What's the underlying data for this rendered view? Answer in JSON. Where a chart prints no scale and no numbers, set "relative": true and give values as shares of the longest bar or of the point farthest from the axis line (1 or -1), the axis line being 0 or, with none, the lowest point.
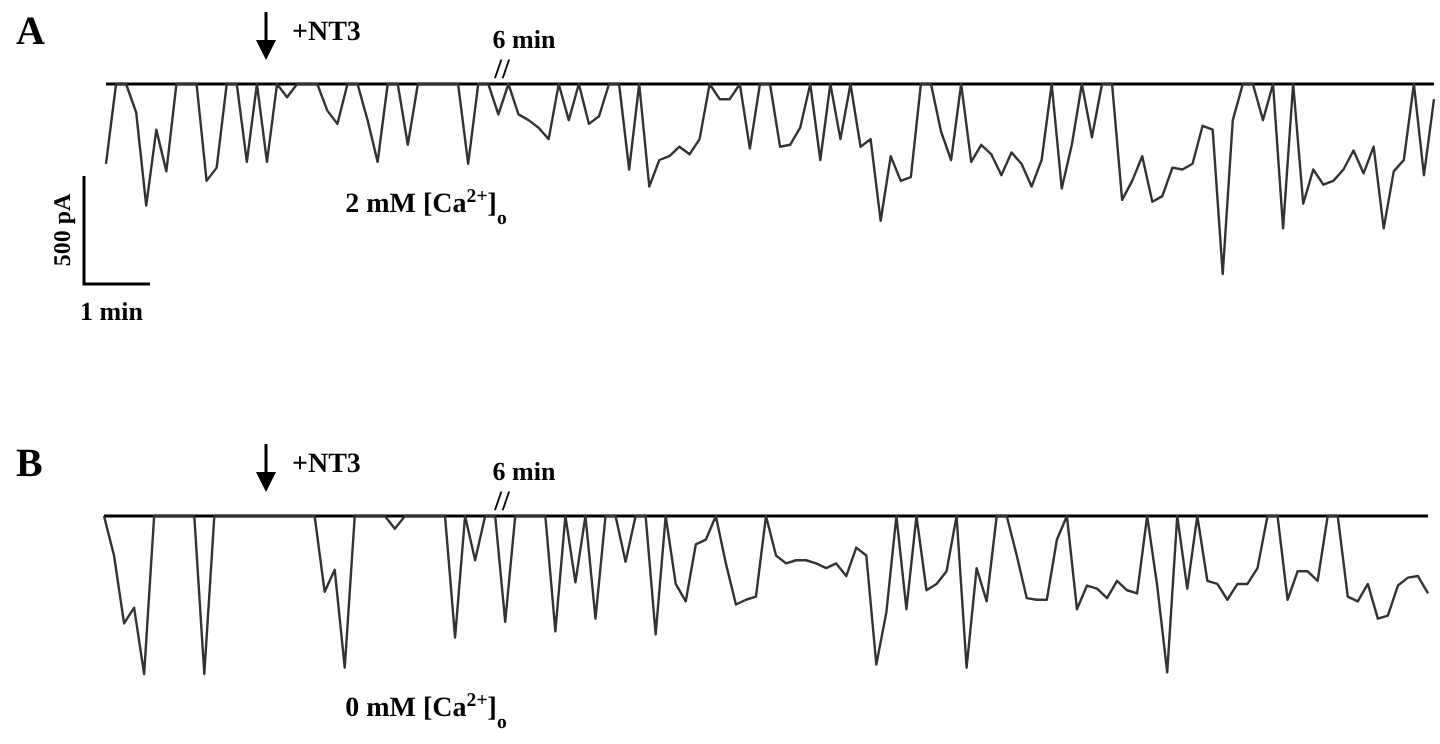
{
  "chart_data": [
    {
      "type": "line",
      "title": "A",
      "relative": true,
      "color": "#333333",
      "categories": [
        null,
        null,
        null,
        null,
        null,
        null,
        null,
        null,
        null,
        null,
        null,
        null,
        null,
        null,
        null,
        null,
        null,
        null,
        null,
        null,
        null,
        null,
        null,
        null,
        null,
        null,
        null,
        null,
        null,
        null,
        null,
        null,
        null,
        null,
        null,
        null,
        null,
        null,
        null,
        null,
        null,
        null,
        null,
        null,
        null,
        null,
        null,
        null,
        null,
        null,
        null,
        null,
        null,
        null,
        null,
        null,
        null,
        null,
        null,
        null,
        null,
        null,
        null,
        null,
        null,
        null,
        null,
        null,
        null,
        null,
        null,
        null,
        null,
        null,
        null,
        null,
        null,
        null,
        null,
        null,
        null,
        null,
        null,
        null,
        null,
        null,
        null,
        null,
        null,
        null,
        null,
        null,
        null,
        null,
        null,
        null,
        null,
        null,
        null,
        null,
        null,
        null,
        null,
        null,
        null,
        null,
        null,
        null,
        null,
        null,
        null,
        null,
        null,
        null,
        null,
        null,
        null,
        null,
        null,
        null,
        null,
        null,
        null,
        null,
        null,
        null,
        null,
        null,
        null,
        null,
        null,
        null,
        null
      ],
      "values": [
        -0.42,
        0,
        0,
        -0.15,
        -0.64,
        -0.24,
        -0.46,
        0,
        0,
        0,
        -0.51,
        -0.44,
        0,
        0,
        -0.41,
        0,
        -0.41,
        0,
        -0.07,
        0,
        0,
        0,
        -0.14,
        -0.21,
        0,
        0,
        -0.19,
        -0.41,
        0,
        0,
        -0.32,
        0,
        0,
        0,
        0,
        0,
        -0.42,
        0,
        0,
        -0.16,
        0,
        -0.16,
        -0.19,
        -0.23,
        -0.29,
        0,
        -0.19,
        0,
        -0.21,
        -0.17,
        0,
        0,
        -0.45,
        0,
        -0.54,
        -0.4,
        -0.38,
        -0.33,
        -0.37,
        -0.29,
        0,
        -0.08,
        -0.08,
        0,
        -0.34,
        0,
        0,
        -0.33,
        -0.32,
        -0.23,
        0,
        -0.4,
        0,
        -0.29,
        0,
        -0.33,
        -0.29,
        -0.72,
        -0.38,
        -0.51,
        -0.49,
        0,
        0,
        -0.25,
        -0.4,
        0,
        -0.41,
        -0.32,
        -0.37,
        -0.48,
        -0.36,
        -0.42,
        -0.54,
        -0.4,
        0,
        -0.55,
        -0.32,
        0,
        -0.28,
        0,
        0,
        -0.61,
        -0.51,
        -0.38,
        -0.62,
        -0.59,
        -0.44,
        -0.45,
        -0.42,
        -0.22,
        -0.24,
        -1,
        -0.19,
        0,
        0,
        -0.19,
        0,
        -0.76,
        0,
        -0.63,
        -0.45,
        -0.53,
        -0.51,
        -0.45,
        -0.35,
        -0.47,
        -0.33,
        -0.76,
        -0.46,
        -0.4,
        0,
        -0.48,
        -0.08
      ],
      "annotations": [
        "+NT3",
        "6 min",
        "//",
        "2 mM [Ca$^{2+}$]$_{o}$",
        "500 pA",
        "1 min"
      ]
    },
    {
      "type": "line",
      "title": "B",
      "relative": true,
      "color": "#333333",
      "categories": [
        null,
        null,
        null,
        null,
        null,
        null,
        null,
        null,
        null,
        null,
        null,
        null,
        null,
        null,
        null,
        null,
        null,
        null,
        null,
        null,
        null,
        null,
        null,
        null,
        null,
        null,
        null,
        null,
        null,
        null,
        null,
        null,
        null,
        null,
        null,
        null,
        null,
        null,
        null,
        null,
        null,
        null,
        null,
        null,
        null,
        null,
        null,
        null,
        null,
        null,
        null,
        null,
        null,
        null,
        null,
        null,
        null,
        null,
        null,
        null,
        null,
        null,
        null,
        null,
        null,
        null,
        null,
        null,
        null,
        null,
        null,
        null,
        null,
        null,
        null,
        null,
        null,
        null,
        null,
        null,
        null,
        null,
        null,
        null,
        null,
        null,
        null,
        null,
        null,
        null,
        null,
        null,
        null,
        null,
        null,
        null,
        null,
        null,
        null,
        null,
        null,
        null,
        null,
        null,
        null,
        null,
        null,
        null,
        null,
        null,
        null,
        null,
        null,
        null,
        null,
        null,
        null,
        null,
        null,
        null,
        null,
        null,
        null,
        null,
        null,
        null,
        null,
        null,
        null,
        null,
        null,
        null,
        null
      ],
      "values": [
        0,
        -0.25,
        -0.68,
        -0.58,
        -1,
        0,
        0,
        0,
        0,
        0,
        -1,
        0,
        0,
        0,
        0,
        0,
        0,
        0,
        0,
        0,
        0,
        0,
        -0.48,
        -0.34,
        -0.96,
        0,
        0,
        0,
        0,
        -0.08,
        0,
        0,
        0,
        0,
        0,
        -0.77,
        0,
        -0.28,
        0,
        0,
        -0.67,
        0,
        0,
        0,
        0,
        -0.73,
        0,
        -0.42,
        0,
        -0.65,
        0,
        0,
        -0.29,
        0,
        0,
        -0.75,
        0,
        -0.43,
        -0.54,
        -0.18,
        -0.15,
        0,
        -0.3,
        -0.56,
        -0.53,
        -0.51,
        0,
        -0.25,
        -0.3,
        -0.28,
        -0.28,
        -0.3,
        -0.33,
        -0.3,
        -0.38,
        -0.2,
        -0.25,
        -0.94,
        -0.61,
        0,
        -0.59,
        0,
        -0.47,
        -0.43,
        -0.35,
        0,
        -0.96,
        -0.33,
        -0.54,
        0,
        0,
        -0.25,
        -0.52,
        -0.53,
        -0.53,
        -0.15,
        0,
        -0.59,
        -0.44,
        -0.46,
        -0.52,
        -0.41,
        -0.47,
        -0.49,
        0,
        -0.44,
        -0.99,
        0,
        -0.46,
        0,
        -0.41,
        -0.43,
        -0.53,
        -0.43,
        -0.43,
        -0.33,
        0,
        0,
        -0.53,
        -0.35,
        -0.35,
        -0.41,
        0,
        0,
        -0.51,
        -0.54,
        -0.43,
        -0.65,
        -0.63,
        -0.44,
        -0.39,
        -0.38,
        -0.49
      ],
      "annotations": [
        "+NT3",
        "6 min",
        "//",
        "0 mM [Ca$^{2+}$]$_{o}$"
      ]
    }
  ]
}
